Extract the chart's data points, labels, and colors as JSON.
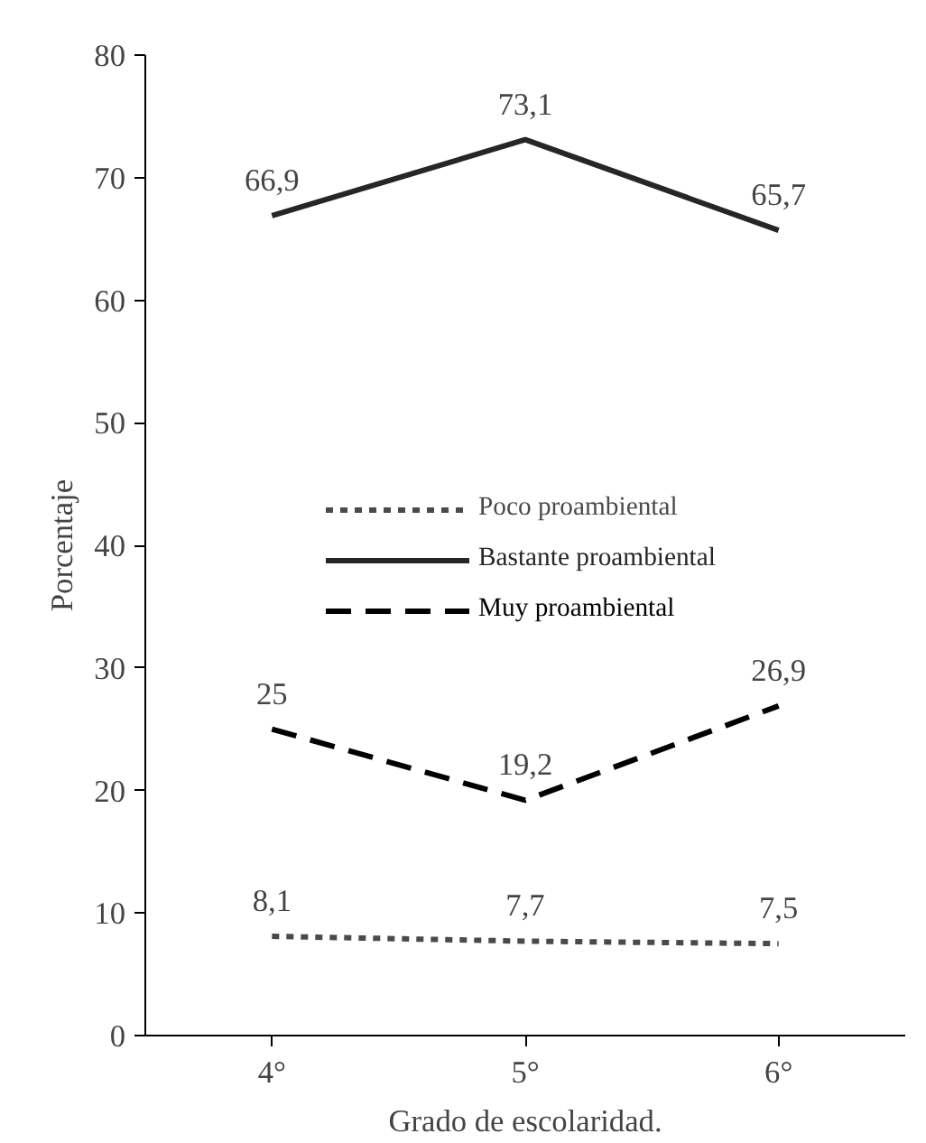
{
  "chart_data": {
    "type": "line",
    "xlabel": "Grado de escolaridad.",
    "ylabel": "Porcentaje",
    "categories": [
      "4°",
      "5°",
      "6°"
    ],
    "series": [
      {
        "name": "Poco proambiental",
        "color": "#4a4a4a",
        "line_style": "dotted",
        "values": [
          8.1,
          7.7,
          7.5
        ],
        "value_labels": [
          "8,1",
          "7,7",
          "7,5"
        ]
      },
      {
        "name": "Bastante proambiental",
        "color": "#262626",
        "line_style": "solid",
        "values": [
          66.9,
          73.1,
          65.7
        ],
        "value_labels": [
          "66,9",
          "73,1",
          "65,7"
        ]
      },
      {
        "name": "Muy proambiental",
        "color": "#000000",
        "line_style": "dashed",
        "values": [
          25,
          19.2,
          26.9
        ],
        "value_labels": [
          "25",
          "19,2",
          "26,9"
        ]
      }
    ],
    "ylim": [
      0,
      80
    ],
    "yticks": [
      0,
      10,
      20,
      30,
      40,
      50,
      60,
      70,
      80
    ],
    "grid": false,
    "legend": "center",
    "marker": "none"
  }
}
